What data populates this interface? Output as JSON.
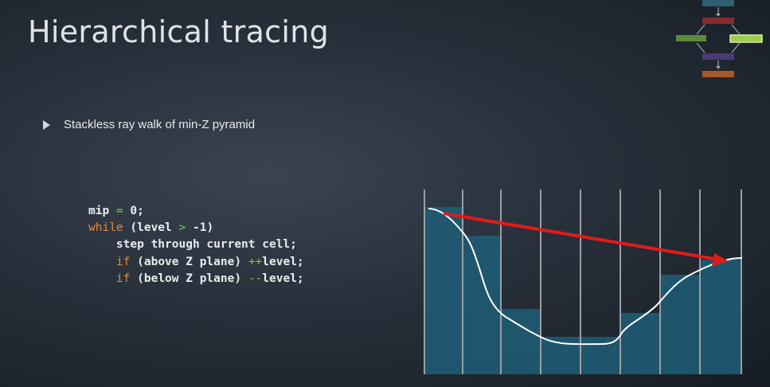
{
  "slide": {
    "title": "Hierarchical tracing",
    "bullet": "Stackless ray walk of min-Z pyramid"
  },
  "code": {
    "line1": {
      "var": "mip",
      "assign": "=",
      "value": "0;"
    },
    "line2": {
      "kw": "while",
      "cond_open": "(level",
      "op": ">",
      "cond_close": "-1)"
    },
    "line3": {
      "text": "step through current cell;"
    },
    "line4": {
      "kw": "if",
      "cond": "(above Z plane)",
      "op": "++",
      "tail": "level;"
    },
    "line5": {
      "kw": "if",
      "cond": "(below Z plane)",
      "op": "--",
      "tail": "level;"
    }
  },
  "colors": {
    "keyword": "#e98a2e",
    "operator": "#7fc74c",
    "column_fill": "#1f5e78",
    "ray": "#e01b1b",
    "surface": "#ffffff"
  },
  "icons": {
    "logo": "pipeline-flow-icon",
    "bullet": "triangle-bullet-icon"
  }
}
